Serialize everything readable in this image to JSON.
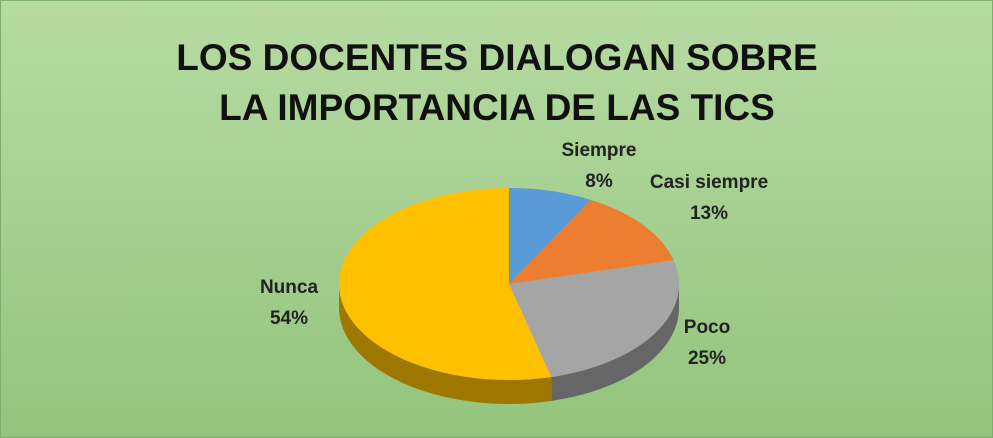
{
  "chart_data": {
    "type": "pie3d",
    "title": "LOS DOCENTES DIALOGAN SOBRE LA IMPORTANCIA DE LAS TICS",
    "categories": [
      "Siempre",
      "Casi siempre",
      "Poco",
      "Nunca"
    ],
    "values": [
      8,
      13,
      25,
      54
    ],
    "value_labels": [
      "8%",
      "13%",
      "25%",
      "54%"
    ],
    "colors": [
      "#5b9bd5",
      "#ed7d31",
      "#a5a5a5",
      "#ffc000"
    ]
  }
}
